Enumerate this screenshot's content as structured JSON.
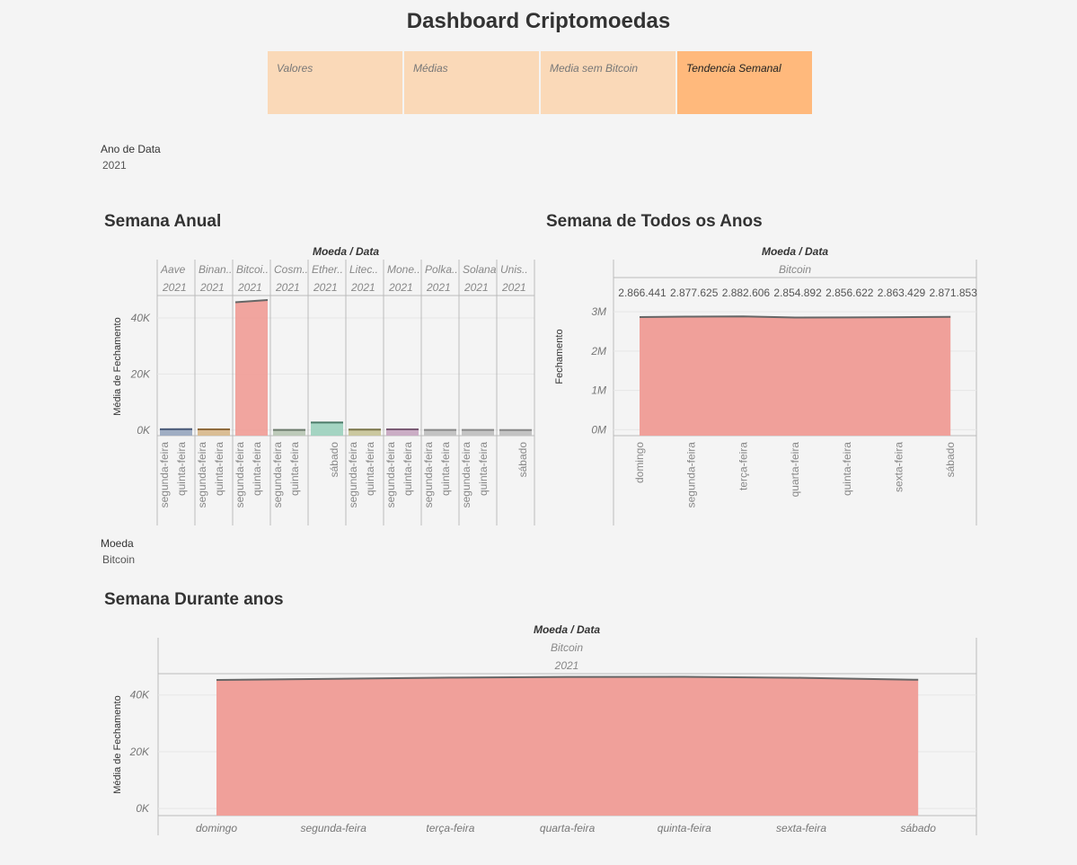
{
  "title": "Dashboard Criptomoedas",
  "tabs": [
    {
      "label": "Valores",
      "active": false
    },
    {
      "label": "Médias",
      "active": false
    },
    {
      "label": "Media sem Bitcoin",
      "active": false
    },
    {
      "label": "Tendencia Semanal",
      "active": true
    }
  ],
  "filters": {
    "year_label": "Ano de Data",
    "year_value": "2021",
    "coin_label": "Moeda",
    "coin_value": "Bitcoin"
  },
  "sections": {
    "annual": "Semana Anual",
    "all_years": "Semana de Todos os Anos",
    "over_years": "Semana Durante anos"
  },
  "colors": {
    "area_fill": "#f0a09a",
    "area_line": "#666666",
    "axis": "#bbbbbb",
    "grid": "#e6e6e6",
    "tab_active": "#ffb97c",
    "tab_inactive": "#fad9b8"
  },
  "chart_data": [
    {
      "type": "area",
      "title": "Semana Anual",
      "header": "Moeda / Data",
      "ylabel": "Média de Fechamento",
      "ylim": [
        -2000,
        48000
      ],
      "yticks": [
        0,
        20000,
        40000
      ],
      "ytick_labels": [
        "0K",
        "20K",
        "40K"
      ],
      "panels": [
        {
          "coin": "Aave",
          "year": "2021",
          "fill": "#9aa9c0",
          "line": "#4a5a78",
          "x": [
            "segunda-feira",
            "quinta-feira"
          ],
          "values": [
            300,
            320
          ]
        },
        {
          "coin": "Binan..",
          "year": "2021",
          "fill": "#d8b98e",
          "line": "#8f6a3b",
          "x": [
            "segunda-feira",
            "quinta-feira"
          ],
          "values": [
            250,
            260
          ]
        },
        {
          "coin": "Bitcoi..",
          "year": "2021",
          "fill": "#f0a09a",
          "line": "#666666",
          "x": [
            "segunda-feira",
            "quinta-feira"
          ],
          "values": [
            45600,
            46400
          ]
        },
        {
          "coin": "Cosm..",
          "year": "2021",
          "fill": "#b9c7b5",
          "line": "#6b7a6b",
          "x": [
            "segunda-feira",
            "quinta-feira"
          ],
          "values": [
            30,
            32
          ]
        },
        {
          "coin": "Ether..",
          "year": "2021",
          "fill": "#9fd2bf",
          "line": "#4a7a68",
          "x": [
            "sábado"
          ],
          "values": [
            2700
          ]
        },
        {
          "coin": "Litec..",
          "year": "2021",
          "fill": "#c8c59a",
          "line": "#7a7548",
          "x": [
            "segunda-feira",
            "quinta-feira"
          ],
          "values": [
            150,
            155
          ]
        },
        {
          "coin": "Mone..",
          "year": "2021",
          "fill": "#c8a9c2",
          "line": "#7a5a74",
          "x": [
            "segunda-feira",
            "quinta-feira"
          ],
          "values": [
            230,
            240
          ]
        },
        {
          "coin": "Polka..",
          "year": "2021",
          "fill": "#c0c0c0",
          "line": "#888888",
          "x": [
            "segunda-feira",
            "quinta-feira"
          ],
          "values": [
            25,
            26
          ]
        },
        {
          "coin": "Solana",
          "year": "2021",
          "fill": "#c0c0c0",
          "line": "#888888",
          "x": [
            "segunda-feira",
            "quinta-feira"
          ],
          "values": [
            60,
            62
          ]
        },
        {
          "coin": "Unis..",
          "year": "2021",
          "fill": "#c0c0c0",
          "line": "#888888",
          "x": [
            "sábado"
          ],
          "values": [
            20
          ]
        }
      ]
    },
    {
      "type": "area",
      "title": "Semana de Todos os Anos",
      "header": "Moeda / Data",
      "panel": "Bitcoin",
      "ylabel": "Fechamento",
      "ylim": [
        -150000,
        3300000
      ],
      "yticks": [
        0,
        1000000,
        2000000,
        3000000
      ],
      "ytick_labels": [
        "0M",
        "1M",
        "2M",
        "3M"
      ],
      "x": [
        "domingo",
        "segunda-feira",
        "terça-feira",
        "quarta-feira",
        "quinta-feira",
        "sexta-feira",
        "sábado"
      ],
      "values": [
        2866441,
        2877625,
        2882606,
        2854892,
        2856622,
        2863429,
        2871853
      ],
      "labels": [
        "2.866.441",
        "2.877.625",
        "2.882.606",
        "2.854.892",
        "2.856.622",
        "2.863.429",
        "2.871.853"
      ]
    },
    {
      "type": "area",
      "title": "Semana Durante anos",
      "header": "Moeda / Data",
      "panel": "Bitcoin",
      "year": "2021",
      "ylabel": "Média de Fechamento",
      "ylim": [
        -2500,
        47500
      ],
      "yticks": [
        0,
        20000,
        40000
      ],
      "ytick_labels": [
        "0K",
        "20K",
        "40K"
      ],
      "x": [
        "domingo",
        "segunda-feira",
        "terça-feira",
        "quarta-feira",
        "quinta-feira",
        "sexta-feira",
        "sábado"
      ],
      "values": [
        45300,
        45700,
        46100,
        46350,
        46400,
        46050,
        45350
      ]
    }
  ]
}
